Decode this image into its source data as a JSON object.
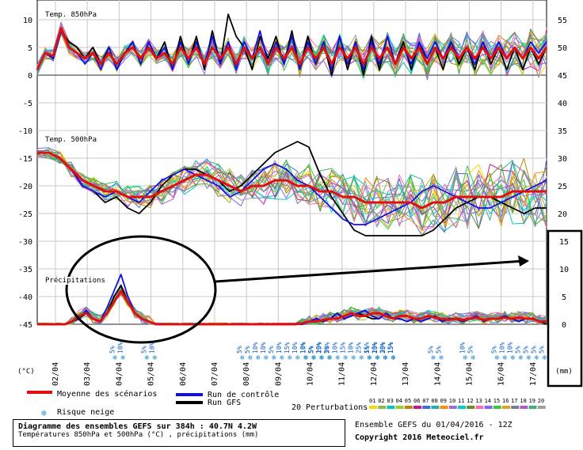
{
  "chart_data": {
    "type": "line",
    "title": "Diagramme des ensembles GEFS sur 384h : 40.7N 4.2W",
    "subtitle": "Températures 850hPa et 500hPa (°C) , précipitations (mm)",
    "x_dates": [
      "02/04",
      "03/04",
      "04/04",
      "05/04",
      "06/04",
      "07/04",
      "08/04",
      "09/04",
      "10/04",
      "11/04",
      "12/04",
      "13/04",
      "14/04",
      "15/04",
      "16/04",
      "17/04"
    ],
    "x_range_hours": [
      0,
      384
    ],
    "left_axis": {
      "unit": "(°C)",
      "ticks": [
        10,
        5,
        0,
        -5,
        -10,
        -15,
        -20,
        -25,
        -30,
        -35,
        -40,
        -45
      ],
      "range": [
        -45,
        10
      ]
    },
    "right_axis_temp": {
      "ticks": [
        55,
        50,
        45,
        40,
        35,
        30,
        25,
        20
      ]
    },
    "right_axis_precip": {
      "unit": "(mm)",
      "ticks": [
        15,
        10,
        5,
        0
      ]
    },
    "panels": {
      "t850": "Temp. 850hPa",
      "t500": "Temp. 500hPa",
      "precip": "Précipitations"
    },
    "series": [
      {
        "name": "Moyenne des scénarios",
        "color": "#e01010",
        "t850": [
          1,
          4,
          3.5,
          8.5,
          5,
          4,
          3,
          4,
          2,
          4,
          2,
          4,
          5,
          3,
          5,
          3,
          4,
          2,
          5,
          3,
          5,
          2,
          5,
          3,
          5,
          2,
          5,
          3,
          5,
          2,
          5,
          3,
          5,
          2,
          5,
          3,
          5,
          2,
          5,
          3,
          5,
          2,
          5,
          3,
          5,
          2,
          5,
          3,
          5,
          2,
          5,
          3,
          5,
          3,
          5,
          3,
          5,
          3,
          5,
          3,
          5,
          3,
          5,
          3,
          5
        ],
        "t500": [
          -14,
          -14,
          -15,
          -17,
          -19,
          -20,
          -21,
          -21,
          -22,
          -22,
          -22,
          -21,
          -20,
          -19,
          -18,
          -18,
          -19,
          -20,
          -21,
          -20,
          -20,
          -19,
          -19,
          -20,
          -20,
          -21,
          -21,
          -22,
          -22,
          -23,
          -23,
          -23,
          -23,
          -23,
          -24,
          -23,
          -23,
          -22,
          -22,
          -22,
          -22,
          -22,
          -21,
          -21,
          -21,
          -21
        ],
        "precip": [
          0,
          0,
          0,
          0,
          0,
          0.5,
          1.5,
          2,
          1,
          0.5,
          2,
          4,
          6,
          4,
          2,
          1,
          0.5,
          0,
          0,
          0,
          0,
          0,
          0,
          0,
          0,
          0,
          0,
          0,
          0,
          0,
          0,
          0,
          0,
          0,
          0,
          0,
          0,
          0,
          0.2,
          0.5,
          0.5,
          0.8,
          1,
          1,
          1.5,
          2,
          1.5,
          1.5,
          2,
          2,
          1.5,
          1,
          1.5,
          1.5,
          1,
          1,
          1.5,
          1.2,
          1,
          0.8,
          1,
          0.8,
          1,
          1.2,
          0.8,
          1,
          1,
          1.2,
          1,
          1.2,
          1,
          1,
          0.5,
          0.5
        ]
      },
      {
        "name": "Run de contrôle",
        "color": "#1010e0",
        "t850": [
          1,
          4,
          3,
          8,
          5,
          4,
          2,
          4,
          1,
          5,
          1,
          4,
          6,
          2,
          6,
          3,
          5,
          1,
          6,
          2,
          6,
          2,
          7,
          2,
          6,
          1,
          6,
          3,
          8,
          2,
          6,
          2,
          7,
          1,
          6,
          2,
          6,
          1,
          7,
          2,
          6,
          1,
          6,
          2,
          7,
          2,
          5,
          2,
          6,
          3,
          6,
          3,
          6,
          3,
          5,
          2,
          6,
          3,
          6,
          3,
          5,
          3,
          6,
          4,
          6
        ],
        "t500": [
          -14,
          -14,
          -15,
          -17,
          -20,
          -21,
          -22,
          -21,
          -22,
          -23,
          -21,
          -19,
          -18,
          -17,
          -18,
          -19,
          -20,
          -22,
          -21,
          -19,
          -17,
          -16,
          -17,
          -19,
          -20,
          -22,
          -24,
          -26,
          -27,
          -27,
          -26,
          -25,
          -24,
          -23,
          -21,
          -20,
          -21,
          -22,
          -23,
          -24,
          -24,
          -23,
          -22,
          -21,
          -20,
          -19
        ],
        "precip": [
          0,
          0,
          0,
          0,
          0,
          0.5,
          1,
          2.5,
          1,
          0.5,
          3,
          6,
          9,
          5,
          2,
          1,
          0.5,
          0,
          0,
          0,
          0,
          0,
          0,
          0,
          0,
          0,
          0,
          0,
          0,
          0,
          0,
          0,
          0,
          0,
          0,
          0,
          0,
          0,
          0,
          0.5,
          1,
          0.5,
          1,
          2,
          1,
          1.5,
          2,
          2.5,
          1.5,
          1,
          2,
          1,
          1,
          0.5,
          1,
          0.5,
          1,
          1.5,
          0.5,
          1,
          1,
          0.5,
          1,
          1.5,
          0.5,
          1,
          1,
          1.5,
          1,
          0.5,
          1,
          1,
          0.5,
          0.5
        ]
      },
      {
        "name": "Run GFS",
        "color": "#000000",
        "t850": [
          1,
          4,
          3,
          8,
          6,
          5,
          3,
          5,
          2,
          5,
          1,
          4,
          6,
          2,
          6,
          3,
          6,
          1,
          7,
          2,
          7,
          1,
          8,
          2,
          11,
          7,
          5,
          1,
          7,
          3,
          7,
          2,
          8,
          1,
          7,
          2,
          6,
          0,
          7,
          1,
          6,
          0,
          7,
          1,
          7,
          2,
          6,
          1,
          6,
          2,
          5,
          1,
          6,
          2,
          5,
          1,
          6,
          2,
          5,
          1,
          5,
          1,
          5,
          2,
          5
        ],
        "t500": [
          -14,
          -14,
          -15,
          -17,
          -20,
          -21,
          -23,
          -22,
          -24,
          -25,
          -23,
          -20,
          -18,
          -17,
          -17,
          -18,
          -19,
          -21,
          -20,
          -18,
          -16,
          -14,
          -13,
          -12,
          -13,
          -18,
          -22,
          -25,
          -28,
          -29,
          -29,
          -29,
          -29,
          -29,
          -29,
          -28,
          -26,
          -24,
          -23,
          -22,
          -22,
          -23,
          -24,
          -25,
          -24,
          -24
        ],
        "precip": [
          0,
          0,
          0,
          0,
          0,
          0.5,
          1,
          2,
          1,
          0.5,
          2,
          5,
          7,
          4,
          2,
          1,
          0.5,
          0,
          0,
          0,
          0,
          0,
          0,
          0,
          0,
          0,
          0,
          0,
          0,
          0,
          0,
          0,
          0,
          0,
          0,
          0,
          0,
          0,
          0,
          0.5,
          1,
          0.5,
          1,
          2,
          1,
          1.5,
          2,
          1.5,
          1,
          1,
          2,
          1,
          1,
          0.5,
          1,
          0.5,
          1,
          1.5,
          0.5,
          1,
          1,
          0.5,
          1,
          1.5,
          0.5,
          1,
          1,
          1.5,
          1,
          0.5,
          1,
          1,
          0.5,
          0
        ]
      }
    ],
    "snow_risk": [
      {
        "date_index": 2,
        "labels": [
          "5%",
          "10%"
        ]
      },
      {
        "date_index": 3,
        "labels": [
          "5%",
          "10%"
        ]
      },
      {
        "date_index": 6,
        "labels": [
          "5%",
          "5%",
          "10%",
          "10%",
          "5%",
          "10%",
          "15%",
          "10%",
          "10%",
          "5%",
          "10%",
          "5%"
        ]
      },
      {
        "date_index": 8,
        "labels": [
          "10%",
          "5%",
          "25%",
          "20%",
          "10%",
          "15%",
          "10%",
          "25%",
          "15%",
          "15%",
          "30%",
          "15%"
        ]
      },
      {
        "date_index": 10,
        "labels": [
          "5%",
          "20%",
          "25%",
          "15%"
        ]
      },
      {
        "date_index": 12,
        "labels": [
          "5%",
          "5%"
        ]
      },
      {
        "date_index": 13,
        "labels": [
          "10%",
          "5%"
        ]
      },
      {
        "date_index": 14,
        "labels": [
          "5%",
          "10%",
          "10%",
          "5%",
          "5%",
          "5%",
          "5%"
        ]
      }
    ],
    "perturbations_label": "20 Perturbations",
    "perturbation_numbers": [
      "01",
      "02",
      "03",
      "04",
      "05",
      "06",
      "07",
      "08",
      "09",
      "10",
      "11",
      "12",
      "13",
      "14",
      "15",
      "16",
      "17",
      "18",
      "19",
      "20"
    ],
    "perturbation_colors": [
      "#ffd700",
      "#8fbc3f",
      "#00c8c8",
      "#9acd32",
      "#b8860b",
      "#c71585",
      "#4169e1",
      "#20b2aa",
      "#ff8c00",
      "#9370db",
      "#00ced1",
      "#6b8e23",
      "#ff69b4",
      "#7b68ee",
      "#32cd32",
      "#daa520",
      "#708090",
      "#ba55d3",
      "#3cb371",
      "#a0a0a0"
    ]
  },
  "legend": {
    "mean": "Moyenne des scénarios",
    "control": "Run de contrôle",
    "gfs": "Run GFS",
    "snow": "Risque neige",
    "perturbations": "20 Perturbations"
  },
  "info": {
    "title": "Diagramme des ensembles GEFS sur 384h : 40.7N 4.2W",
    "subtitle": "Températures 850hPa et 500hPa (°C) , précipitations (mm)",
    "ensemble": "Ensemble GEFS du 01/04/2016 - 12Z",
    "copyright": "Copyright 2016 Meteociel.fr"
  }
}
